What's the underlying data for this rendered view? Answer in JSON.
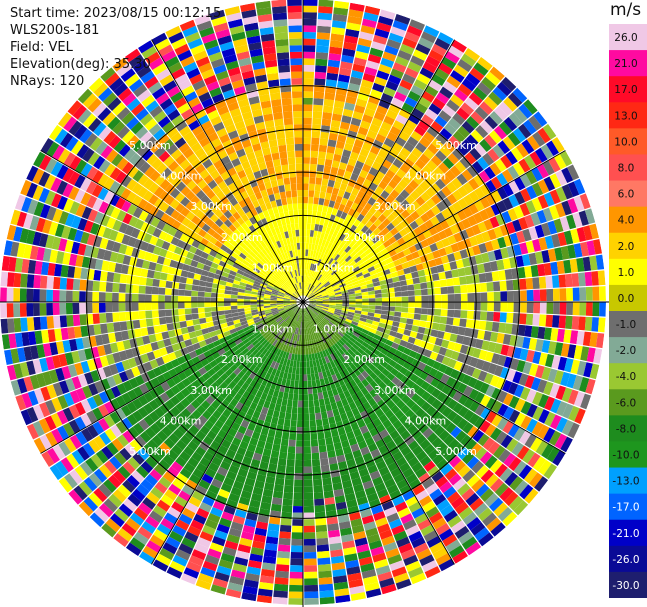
{
  "info": {
    "start_time": "Start time: 2023/08/15 00:12:15",
    "station": "WLS200s-181",
    "field": "Field: VEL",
    "elevation": "Elevation(deg): 35.30",
    "nrays": "NRays: 120"
  },
  "chart_data": {
    "type": "heatmap",
    "subtype": "ppi-polar",
    "field": "VEL",
    "units": "m/s",
    "nrays": 120,
    "range_ring_labels": [
      "1.00km",
      "2.00km",
      "3.00km",
      "4.00km",
      "5.00km"
    ],
    "range_rings_km": [
      1,
      2,
      3,
      4,
      5
    ],
    "max_range_km": 7,
    "colorbar": {
      "unit": "m/s",
      "ticks": [
        "26.0",
        "21.0",
        "17.0",
        "13.0",
        "10.0",
        "8.0",
        "6.0",
        "4.0",
        "2.0",
        "1.0",
        "0.0",
        "-1.0",
        "-2.0",
        "-4.0",
        "-6.0",
        "-8.0",
        "-10.0",
        "-13.0",
        "-17.0",
        "-21.0",
        "-26.0",
        "-30.0"
      ],
      "colors": [
        "#f0c8e6",
        "#ff0aa0",
        "#ff0a28",
        "#ff2814",
        "#ff5a28",
        "#ff5050",
        "#ff7864",
        "#ff9600",
        "#ffd200",
        "#ffff00",
        "#c8c800",
        "#6e6e6e",
        "#82aa96",
        "#9ac832",
        "#5a9a1e",
        "#1e8c1e",
        "#1e961e",
        "#00a0ff",
        "#0064ff",
        "#0000c8",
        "#0a0a96",
        "#1e1e6e"
      ]
    },
    "velocity_pattern": {
      "inner_km": [
        {
          "sector_deg": [
            270,
            90
          ],
          "value": 2.0
        },
        {
          "sector_deg": [
            90,
            270
          ],
          "value": -6.0
        }
      ],
      "outer_noise_from_km": 5.0
    }
  }
}
